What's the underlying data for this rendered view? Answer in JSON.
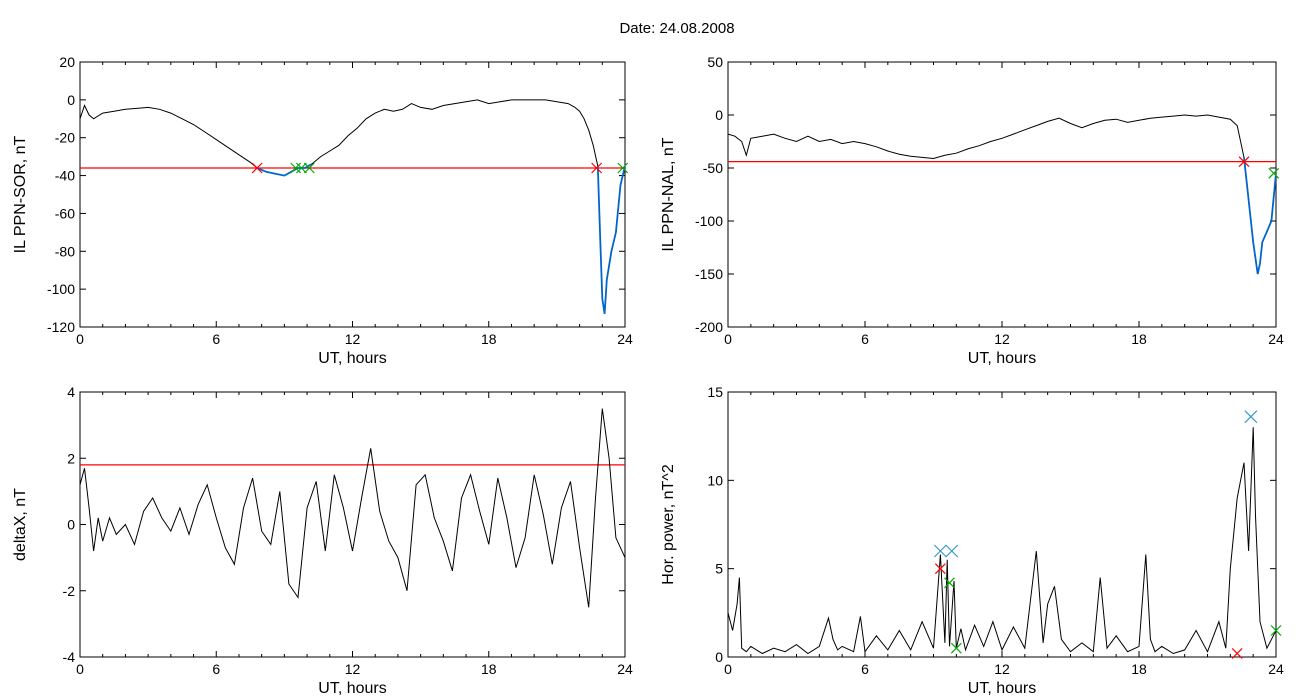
{
  "title": "Date:  24.08.2008",
  "colors": {
    "axes": "#000000",
    "series": "#000000",
    "threshold": "#ff0000",
    "highlight": "#0066cc",
    "marker_red": "#ff0000",
    "marker_green": "#00aa00",
    "marker_blue": "#3399cc"
  },
  "chart_data": [
    {
      "type": "line",
      "ylabel": "IL PPN-SOR, nT",
      "xlabel": "UT, hours",
      "xlim": [
        0,
        24
      ],
      "ylim": [
        -120,
        20
      ],
      "xticks": [
        0,
        6,
        12,
        18,
        24
      ],
      "yticks": [
        20,
        0,
        -20,
        -40,
        -60,
        -80,
        -100,
        -120
      ],
      "threshold": -36,
      "series": [
        {
          "x": [
            0,
            0.2,
            0.4,
            0.6,
            1.0,
            1.5,
            2.0,
            2.5,
            3.0,
            3.5,
            4.0,
            4.5,
            5.0,
            5.5,
            6.0,
            6.5,
            7.0,
            7.5,
            7.8,
            8.2,
            8.6,
            9.0,
            9.3,
            9.6,
            9.9,
            10.2,
            10.6,
            11.0,
            11.4,
            11.8,
            12.2,
            12.6,
            13.0,
            13.4,
            13.8,
            14.2,
            14.6,
            15.0,
            15.5,
            16.0,
            16.5,
            17.0,
            17.5,
            18.0,
            18.5,
            19.0,
            19.5,
            20.0,
            20.5,
            21.0,
            21.5,
            21.8,
            22.0,
            22.2,
            22.4,
            22.6,
            22.8,
            22.9,
            23.0,
            23.1,
            23.2,
            23.4,
            23.6,
            23.8,
            24.0
          ],
          "y": [
            -10,
            -3,
            -8,
            -10,
            -7,
            -6,
            -5,
            -4.5,
            -4,
            -5,
            -7,
            -10,
            -13,
            -17,
            -21,
            -25,
            -29,
            -33,
            -36,
            -38,
            -39,
            -40,
            -38,
            -36,
            -36,
            -34,
            -30,
            -27,
            -24,
            -19,
            -15,
            -10,
            -7,
            -5,
            -6,
            -5,
            -2,
            -4,
            -5,
            -3,
            -2,
            -1,
            0,
            -2,
            -1,
            0,
            0,
            0,
            0,
            -1,
            -2,
            -4,
            -6,
            -10,
            -16,
            -24,
            -35,
            -70,
            -105,
            -113,
            -95,
            -80,
            -70,
            -45,
            -35
          ]
        }
      ],
      "highlight_segments": [
        [
          7.8,
          10.2
        ],
        [
          22.75,
          24
        ]
      ],
      "markers_red": [
        [
          7.8,
          -36
        ],
        [
          22.75,
          -36
        ]
      ],
      "markers_green": [
        [
          9.5,
          -36
        ],
        [
          9.75,
          -36
        ],
        [
          10.1,
          -36
        ],
        [
          23.9,
          -36
        ]
      ]
    },
    {
      "type": "line",
      "ylabel": "IL PPN-NAL, nT",
      "xlabel": "UT, hours",
      "xlim": [
        0,
        24
      ],
      "ylim": [
        -200,
        50
      ],
      "xticks": [
        0,
        6,
        12,
        18,
        24
      ],
      "yticks": [
        50,
        0,
        -50,
        -100,
        -150,
        -200
      ],
      "threshold": -44,
      "series": [
        {
          "x": [
            0,
            0.3,
            0.6,
            0.8,
            1.0,
            1.5,
            2.0,
            2.5,
            3.0,
            3.5,
            4.0,
            4.5,
            5.0,
            5.5,
            6.0,
            6.5,
            7.0,
            7.5,
            8.0,
            8.5,
            9.0,
            9.5,
            10.0,
            10.5,
            11.0,
            11.5,
            12.0,
            12.5,
            13.0,
            13.5,
            14.0,
            14.5,
            15.0,
            15.5,
            16.0,
            16.5,
            17.0,
            17.5,
            18.0,
            18.5,
            19.0,
            19.5,
            20.0,
            20.5,
            21.0,
            21.5,
            22.0,
            22.3,
            22.6,
            22.8,
            23.0,
            23.2,
            23.3,
            23.4,
            23.6,
            23.8,
            24.0
          ],
          "y": [
            -18,
            -20,
            -25,
            -38,
            -22,
            -20,
            -18,
            -22,
            -25,
            -20,
            -25,
            -23,
            -27,
            -25,
            -27,
            -30,
            -34,
            -37,
            -39,
            -40,
            -41,
            -38,
            -36,
            -32,
            -29,
            -25,
            -22,
            -18,
            -14,
            -10,
            -6,
            -3,
            -8,
            -12,
            -8,
            -5,
            -4,
            -7,
            -5,
            -3,
            -2,
            -1,
            0,
            -1,
            0,
            -2,
            -4,
            -10,
            -40,
            -80,
            -120,
            -150,
            -140,
            -120,
            -110,
            -100,
            -55
          ]
        }
      ],
      "highlight_segments": [
        [
          22.6,
          24
        ]
      ],
      "markers_red": [
        [
          22.6,
          -44
        ]
      ],
      "markers_green": [
        [
          23.9,
          -55
        ]
      ]
    },
    {
      "type": "line",
      "ylabel": "deltaX, nT",
      "xlabel": "UT, hours",
      "xlim": [
        0,
        24
      ],
      "ylim": [
        -4,
        4
      ],
      "xticks": [
        0,
        6,
        12,
        18,
        24
      ],
      "yticks": [
        4,
        2,
        0,
        -2,
        -4
      ],
      "threshold": 1.8,
      "series": [
        {
          "x": [
            0,
            0.2,
            0.4,
            0.6,
            0.8,
            1.0,
            1.3,
            1.6,
            2.0,
            2.4,
            2.8,
            3.2,
            3.6,
            4.0,
            4.4,
            4.8,
            5.2,
            5.6,
            6.0,
            6.4,
            6.8,
            7.2,
            7.6,
            8.0,
            8.4,
            8.8,
            9.2,
            9.6,
            10.0,
            10.4,
            10.8,
            11.2,
            11.6,
            12.0,
            12.4,
            12.8,
            13.2,
            13.6,
            14.0,
            14.4,
            14.8,
            15.2,
            15.6,
            16.0,
            16.4,
            16.8,
            17.2,
            17.6,
            18.0,
            18.4,
            18.8,
            19.2,
            19.6,
            20.0,
            20.4,
            20.8,
            21.2,
            21.6,
            22.0,
            22.4,
            22.7,
            23.0,
            23.3,
            23.6,
            24.0
          ],
          "y": [
            1.2,
            1.7,
            0.5,
            -0.8,
            0.2,
            -0.5,
            0.2,
            -0.3,
            0.0,
            -0.6,
            0.4,
            0.8,
            0.2,
            -0.2,
            0.5,
            -0.3,
            0.6,
            1.2,
            0.2,
            -0.7,
            -1.2,
            0.5,
            1.4,
            -0.2,
            -0.6,
            1.0,
            -1.8,
            -2.2,
            0.5,
            1.3,
            -0.8,
            1.5,
            0.5,
            -0.8,
            0.8,
            2.3,
            0.4,
            -0.5,
            -1.0,
            -2.0,
            1.2,
            1.5,
            0.2,
            -0.5,
            -1.4,
            0.8,
            1.5,
            0.4,
            -0.6,
            1.4,
            0.2,
            -1.3,
            -0.4,
            1.5,
            0.3,
            -1.2,
            0.5,
            1.3,
            -0.7,
            -2.5,
            0.8,
            3.5,
            2.0,
            -0.4,
            -1.0
          ]
        }
      ]
    },
    {
      "type": "line",
      "ylabel": "Hor. power, nT^2",
      "xlabel": "UT, hours",
      "xlim": [
        0,
        24
      ],
      "ylim": [
        0,
        15
      ],
      "xticks": [
        0,
        6,
        12,
        18,
        24
      ],
      "yticks": [
        15,
        10,
        5,
        0
      ],
      "series": [
        {
          "x": [
            0,
            0.2,
            0.4,
            0.5,
            0.6,
            0.8,
            1.0,
            1.5,
            2.0,
            2.5,
            3.0,
            3.5,
            4.0,
            4.4,
            4.6,
            4.8,
            5.0,
            5.5,
            5.8,
            6.0,
            6.5,
            7.0,
            7.5,
            8.0,
            8.5,
            9.0,
            9.3,
            9.5,
            9.6,
            9.7,
            9.9,
            10.0,
            10.2,
            10.4,
            10.8,
            11.2,
            11.6,
            12.0,
            12.5,
            13.0,
            13.5,
            13.8,
            14.0,
            14.3,
            14.6,
            15.0,
            15.5,
            16.0,
            16.3,
            16.6,
            17.0,
            17.5,
            18.0,
            18.3,
            18.5,
            18.7,
            19.0,
            19.5,
            20.0,
            20.5,
            21.0,
            21.5,
            21.8,
            22.0,
            22.3,
            22.6,
            22.8,
            23.0,
            23.1,
            23.3,
            23.6,
            24.0
          ],
          "y": [
            2.5,
            1.5,
            3.0,
            4.5,
            0.5,
            0.3,
            0.6,
            0.2,
            0.5,
            0.3,
            0.7,
            0.2,
            0.6,
            2.2,
            1.0,
            0.4,
            0.6,
            0.3,
            2.3,
            0.3,
            1.2,
            0.4,
            1.5,
            0.4,
            2.0,
            0.5,
            5.8,
            0.8,
            5.5,
            0.6,
            4.3,
            0.5,
            1.6,
            0.4,
            1.8,
            0.6,
            2.0,
            0.4,
            1.7,
            0.5,
            6.0,
            0.8,
            3.0,
            4.0,
            1.0,
            0.3,
            0.8,
            0.3,
            4.5,
            0.5,
            1.2,
            0.3,
            0.6,
            5.8,
            1.0,
            0.3,
            0.6,
            0.2,
            0.4,
            1.5,
            0.3,
            2.0,
            0.5,
            5.0,
            9.0,
            11.0,
            6.0,
            13.0,
            8.0,
            2.0,
            0.5,
            1.5
          ]
        }
      ],
      "markers_blue": [
        [
          9.3,
          6.0
        ],
        [
          9.8,
          6.0
        ],
        [
          22.9,
          13.6
        ]
      ],
      "markers_red": [
        [
          9.3,
          5.0
        ],
        [
          22.3,
          0.2
        ]
      ],
      "markers_green": [
        [
          9.7,
          4.2
        ],
        [
          10.0,
          0.5
        ],
        [
          24.0,
          1.5
        ]
      ]
    }
  ]
}
